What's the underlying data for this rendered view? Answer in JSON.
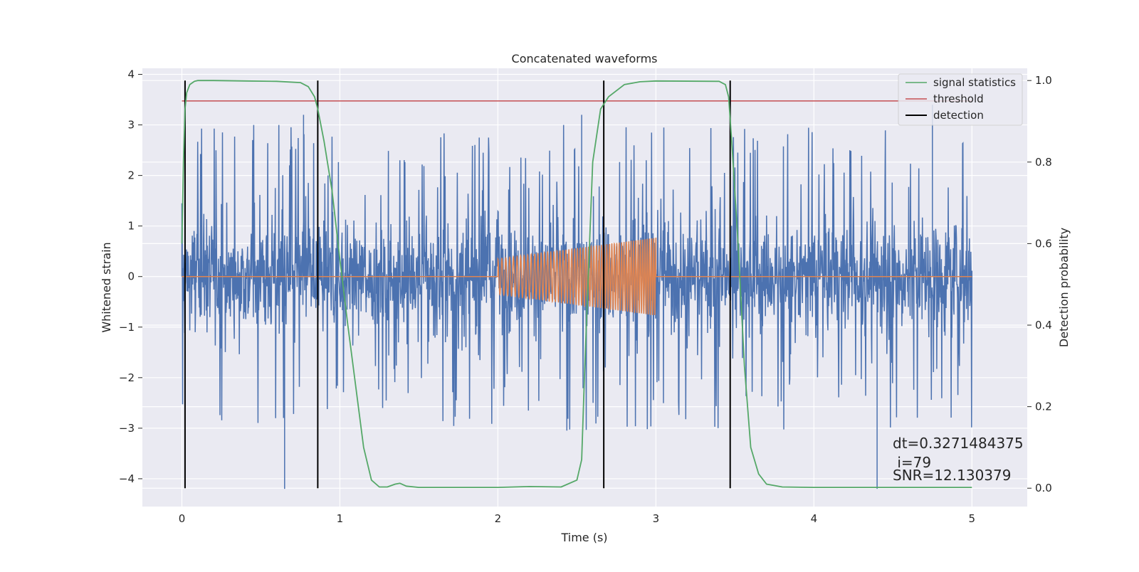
{
  "chart_data": {
    "type": "line",
    "title": "Concatenated waveforms",
    "xlabel": "Time (s)",
    "ylabel": "Whitened strain",
    "y2label": "Detection probability",
    "xlim": [
      -0.25,
      5.35
    ],
    "ylim": [
      -4.55,
      4.12
    ],
    "y2lim": [
      -0.045,
      1.03
    ],
    "x_ticks": [
      "0",
      "1",
      "2",
      "3",
      "4",
      "5"
    ],
    "y_ticks": [
      "4",
      "3",
      "2",
      "1",
      "0",
      "−1",
      "−2",
      "−3",
      "−4"
    ],
    "y2_ticks": [
      "1.0",
      "0.8",
      "0.6",
      "0.4",
      "0.2",
      "0.0"
    ],
    "grid": true,
    "legend_position": "top-right",
    "colors": {
      "strain": "#4c72b0",
      "injection": "#dd8452",
      "signal_statistics": "#55a868",
      "threshold": "#c44e52",
      "detection": "#000000",
      "background": "#eaeaf2",
      "grid": "#ffffff"
    },
    "series": [
      {
        "name": "signal statistics",
        "axis": "right",
        "x": [
          0,
          0.01,
          0.02,
          0.03,
          0.05,
          0.08,
          0.1,
          0.2,
          0.4,
          0.6,
          0.75,
          0.8,
          0.84,
          0.86,
          0.9,
          0.95,
          1.0,
          1.05,
          1.1,
          1.15,
          1.2,
          1.25,
          1.3,
          1.35,
          1.38,
          1.42,
          1.5,
          2.0,
          2.2,
          2.4,
          2.5,
          2.53,
          2.55,
          2.6,
          2.65,
          2.7,
          2.8,
          2.9,
          3.0,
          3.4,
          3.44,
          3.46,
          3.48,
          3.52,
          3.56,
          3.6,
          3.65,
          3.7,
          3.8,
          4.0,
          5.0
        ],
        "values": [
          0.6,
          0.8,
          0.93,
          0.97,
          0.99,
          0.998,
          1.0,
          1.0,
          0.999,
          0.998,
          0.995,
          0.985,
          0.96,
          0.93,
          0.85,
          0.73,
          0.56,
          0.4,
          0.25,
          0.1,
          0.02,
          0.003,
          0.003,
          0.01,
          0.012,
          0.005,
          0.002,
          0.002,
          0.004,
          0.003,
          0.02,
          0.07,
          0.3,
          0.8,
          0.93,
          0.96,
          0.99,
          0.997,
          0.999,
          0.998,
          0.99,
          0.96,
          0.85,
          0.6,
          0.3,
          0.1,
          0.035,
          0.01,
          0.003,
          0.002,
          0.002
        ]
      },
      {
        "name": "threshold",
        "axis": "right",
        "x": [
          0,
          5.0
        ],
        "values": [
          0.95,
          0.95
        ]
      },
      {
        "name": "detection",
        "axis": "right",
        "x_positions": [
          0.02,
          0.86,
          2.67,
          3.47
        ],
        "range": [
          0,
          1.0
        ]
      },
      {
        "name": "",
        "axis": "left",
        "description_type": "noise",
        "x_range": [
          0,
          5.0
        ],
        "core_amplitude": 1.0,
        "spike_amplitude": 2.6,
        "notable_spikes": [
          {
            "x": 0.65,
            "y": -4.2
          },
          {
            "x": 0.77,
            "y": 3.2
          },
          {
            "x": 2.53,
            "y": 3.2
          },
          {
            "x": 4.4,
            "y": -4.2
          },
          {
            "x": 4.75,
            "y": 3.4
          },
          {
            "x": 0.02,
            "y": -1.85
          },
          {
            "x": 0.0,
            "y": 1.45
          }
        ]
      },
      {
        "name": "",
        "axis": "left",
        "description_type": "chirp",
        "x_range": [
          2.0,
          3.0
        ],
        "amplitude_start": 0.35,
        "amplitude_end": 0.77,
        "cycles": 56
      }
    ],
    "legend": [
      "signal statistics",
      "threshold",
      "detection"
    ],
    "annotations": [
      "dt=0.3271484375",
      " i=79",
      "SNR=12.130379"
    ]
  }
}
